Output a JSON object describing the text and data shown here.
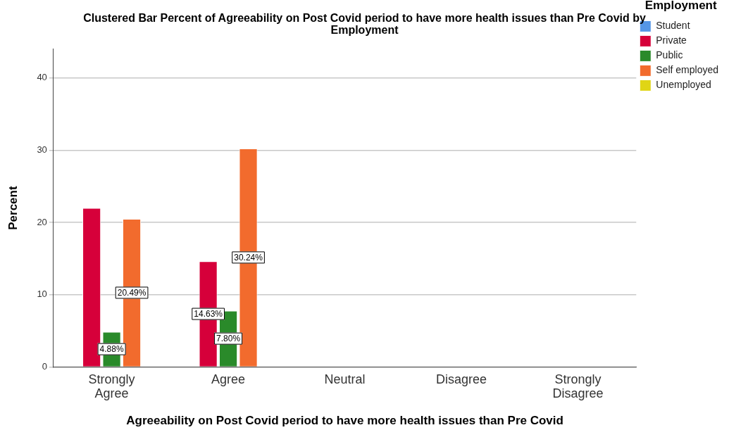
{
  "chart_data": {
    "type": "bar",
    "title": "Clustered Bar Percent of Agreeability on Post Covid period to have more health issues than Pre Covid by Employment",
    "xlabel": "Agreeability on Post Covid period to have more health issues than Pre Covid",
    "ylabel": "Percent",
    "legend_title": "Employment",
    "categories": [
      "Strongly Agree",
      "Agree",
      "Neutral",
      "Disagree",
      "Strongly Disagree"
    ],
    "series": [
      {
        "name": "Student",
        "color": "#5596e6",
        "values": [
          null,
          null,
          null,
          null,
          null
        ]
      },
      {
        "name": "Private",
        "color": "#d6003a",
        "values": [
          22.0,
          14.63,
          null,
          null,
          null
        ],
        "value_labels": [
          null,
          "14.63%",
          null,
          null,
          null
        ]
      },
      {
        "name": "Public",
        "color": "#2a8a2a",
        "values": [
          4.88,
          7.8,
          null,
          null,
          null
        ],
        "value_labels": [
          "4.88%",
          "7.80%",
          null,
          null,
          null
        ]
      },
      {
        "name": "Self employed",
        "color": "#f26b2d",
        "values": [
          20.49,
          30.24,
          null,
          null,
          null
        ],
        "value_labels": [
          "20.49%",
          "30.24%",
          null,
          null,
          null
        ]
      },
      {
        "name": "Unemployed",
        "color": "#e0d515",
        "values": [
          null,
          null,
          null,
          null,
          null
        ]
      }
    ],
    "ylim": [
      0,
      44
    ],
    "yticks": [
      0,
      10,
      20,
      30,
      40
    ],
    "grid": "y",
    "legend": "right"
  }
}
